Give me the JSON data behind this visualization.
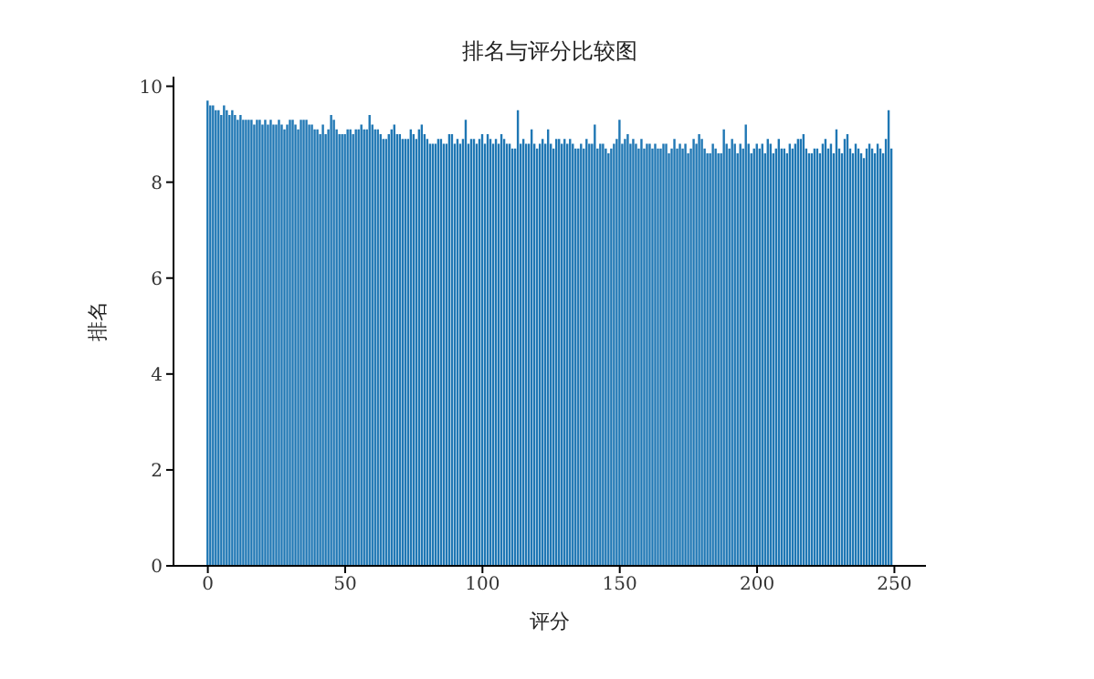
{
  "chart_data": {
    "type": "bar",
    "title": "排名与评分比较图",
    "xlabel": "评分",
    "ylabel": "排名",
    "color": "#1f77b4",
    "x": [
      0,
      1,
      2,
      3,
      4,
      5,
      6,
      7,
      8,
      9,
      10,
      11,
      12,
      13,
      14,
      15,
      16,
      17,
      18,
      19,
      20,
      21,
      22,
      23,
      24,
      25,
      26,
      27,
      28,
      29,
      30,
      31,
      32,
      33,
      34,
      35,
      36,
      37,
      38,
      39,
      40,
      41,
      42,
      43,
      44,
      45,
      46,
      47,
      48,
      49,
      50,
      51,
      52,
      53,
      54,
      55,
      56,
      57,
      58,
      59,
      60,
      61,
      62,
      63,
      64,
      65,
      66,
      67,
      68,
      69,
      70,
      71,
      72,
      73,
      74,
      75,
      76,
      77,
      78,
      79,
      80,
      81,
      82,
      83,
      84,
      85,
      86,
      87,
      88,
      89,
      90,
      91,
      92,
      93,
      94,
      95,
      96,
      97,
      98,
      99,
      100,
      101,
      102,
      103,
      104,
      105,
      106,
      107,
      108,
      109,
      110,
      111,
      112,
      113,
      114,
      115,
      116,
      117,
      118,
      119,
      120,
      121,
      122,
      123,
      124,
      125,
      126,
      127,
      128,
      129,
      130,
      131,
      132,
      133,
      134,
      135,
      136,
      137,
      138,
      139,
      140,
      141,
      142,
      143,
      144,
      145,
      146,
      147,
      148,
      149,
      150,
      151,
      152,
      153,
      154,
      155,
      156,
      157,
      158,
      159,
      160,
      161,
      162,
      163,
      164,
      165,
      166,
      167,
      168,
      169,
      170,
      171,
      172,
      173,
      174,
      175,
      176,
      177,
      178,
      179,
      180,
      181,
      182,
      183,
      184,
      185,
      186,
      187,
      188,
      189,
      190,
      191,
      192,
      193,
      194,
      195,
      196,
      197,
      198,
      199,
      200,
      201,
      202,
      203,
      204,
      205,
      206,
      207,
      208,
      209,
      210,
      211,
      212,
      213,
      214,
      215,
      216,
      217,
      218,
      219,
      220,
      221,
      222,
      223,
      224,
      225,
      226,
      227,
      228,
      229,
      230,
      231,
      232,
      233,
      234,
      235,
      236,
      237,
      238,
      239,
      240,
      241,
      242,
      243,
      244,
      245,
      246,
      247,
      248,
      249
    ],
    "values": [
      9.7,
      9.6,
      9.6,
      9.5,
      9.5,
      9.4,
      9.6,
      9.5,
      9.4,
      9.5,
      9.4,
      9.3,
      9.4,
      9.3,
      9.3,
      9.3,
      9.3,
      9.2,
      9.3,
      9.3,
      9.2,
      9.3,
      9.2,
      9.3,
      9.2,
      9.2,
      9.3,
      9.2,
      9.1,
      9.2,
      9.3,
      9.3,
      9.2,
      9.1,
      9.3,
      9.3,
      9.3,
      9.2,
      9.2,
      9.1,
      9.1,
      9.0,
      9.2,
      9.0,
      9.1,
      9.4,
      9.3,
      9.1,
      9.0,
      9.0,
      9.0,
      9.1,
      9.1,
      9.0,
      9.1,
      9.1,
      9.2,
      9.1,
      9.1,
      9.4,
      9.2,
      9.1,
      9.1,
      9.0,
      8.9,
      8.9,
      9.0,
      9.1,
      9.2,
      9.0,
      9.0,
      8.9,
      8.9,
      8.9,
      9.1,
      9.0,
      8.9,
      9.1,
      9.2,
      9.0,
      8.9,
      8.8,
      8.8,
      8.8,
      8.9,
      8.9,
      8.8,
      8.8,
      9.0,
      9.0,
      8.8,
      8.9,
      8.8,
      8.9,
      9.3,
      8.8,
      8.9,
      8.9,
      8.8,
      8.9,
      9.0,
      8.8,
      9.0,
      8.9,
      8.8,
      8.9,
      8.8,
      9.0,
      8.9,
      8.8,
      8.8,
      8.7,
      8.7,
      9.5,
      8.8,
      8.9,
      8.8,
      8.8,
      9.1,
      8.8,
      8.7,
      8.8,
      8.9,
      8.8,
      9.1,
      8.8,
      8.7,
      8.9,
      8.9,
      8.8,
      8.9,
      8.8,
      8.9,
      8.8,
      8.7,
      8.7,
      8.8,
      8.7,
      8.9,
      8.8,
      8.8,
      9.2,
      8.7,
      8.8,
      8.8,
      8.7,
      8.6,
      8.7,
      8.8,
      8.9,
      9.3,
      8.8,
      8.9,
      9.0,
      8.8,
      8.9,
      8.8,
      8.7,
      8.9,
      8.7,
      8.8,
      8.8,
      8.7,
      8.8,
      8.7,
      8.7,
      8.8,
      8.8,
      8.6,
      8.7,
      8.9,
      8.7,
      8.8,
      8.7,
      8.8,
      8.6,
      8.7,
      8.9,
      8.8,
      9.0,
      8.9,
      8.7,
      8.6,
      8.6,
      8.8,
      8.7,
      8.6,
      8.6,
      9.1,
      8.8,
      8.7,
      8.9,
      8.8,
      8.6,
      8.8,
      8.7,
      9.2,
      8.8,
      8.6,
      8.7,
      8.8,
      8.7,
      8.8,
      8.6,
      8.9,
      8.8,
      8.6,
      8.7,
      8.9,
      8.7,
      8.7,
      8.6,
      8.8,
      8.7,
      8.8,
      8.9,
      8.9,
      9.0,
      8.7,
      8.6,
      8.6,
      8.7,
      8.7,
      8.6,
      8.8,
      8.9,
      8.7,
      8.8,
      8.6,
      9.1,
      8.7,
      8.6,
      8.9,
      9.0,
      8.7,
      8.6,
      8.8,
      8.7,
      8.6,
      8.5,
      8.7,
      8.8,
      8.7,
      8.6,
      8.8,
      8.7,
      8.6,
      8.9,
      9.5,
      8.7
    ],
    "xlim": [
      -12.5,
      261.5
    ],
    "xticks": [
      0,
      50,
      100,
      150,
      200,
      250
    ],
    "ylim": [
      0,
      10.2
    ],
    "yticks": [
      0,
      2,
      4,
      6,
      8,
      10
    ],
    "grid": false,
    "legend": false
  }
}
